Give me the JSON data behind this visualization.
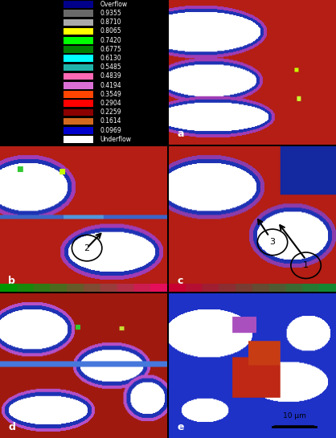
{
  "colorbar_labels": [
    "Overflow",
    "0.9355",
    "0.8710",
    "0.8065",
    "0.7420",
    "0.6775",
    "0.6130",
    "0.5485",
    "0.4839",
    "0.4194",
    "0.3549",
    "0.2904",
    "0.2259",
    "0.1614",
    "0.0969",
    "Underflow"
  ],
  "colorbar_colors": [
    "#00008B",
    "#696969",
    "#A9A9A9",
    "#FFFF00",
    "#00FF00",
    "#008000",
    "#00FFFF",
    "#20B2AA",
    "#FF69B4",
    "#DA70D6",
    "#FF4500",
    "#FF0000",
    "#8B0000",
    "#D2691E",
    "#0000CD",
    "#FFFFFF"
  ],
  "panel_labels": [
    "a",
    "b",
    "c",
    "d",
    "e"
  ],
  "background_color": "#000000",
  "legend_bg": "#000000",
  "text_color": "#FFFFFF",
  "scale_bar_text": "10 μm",
  "figure_width": 4.18,
  "figure_height": 5.45,
  "dpi": 100
}
